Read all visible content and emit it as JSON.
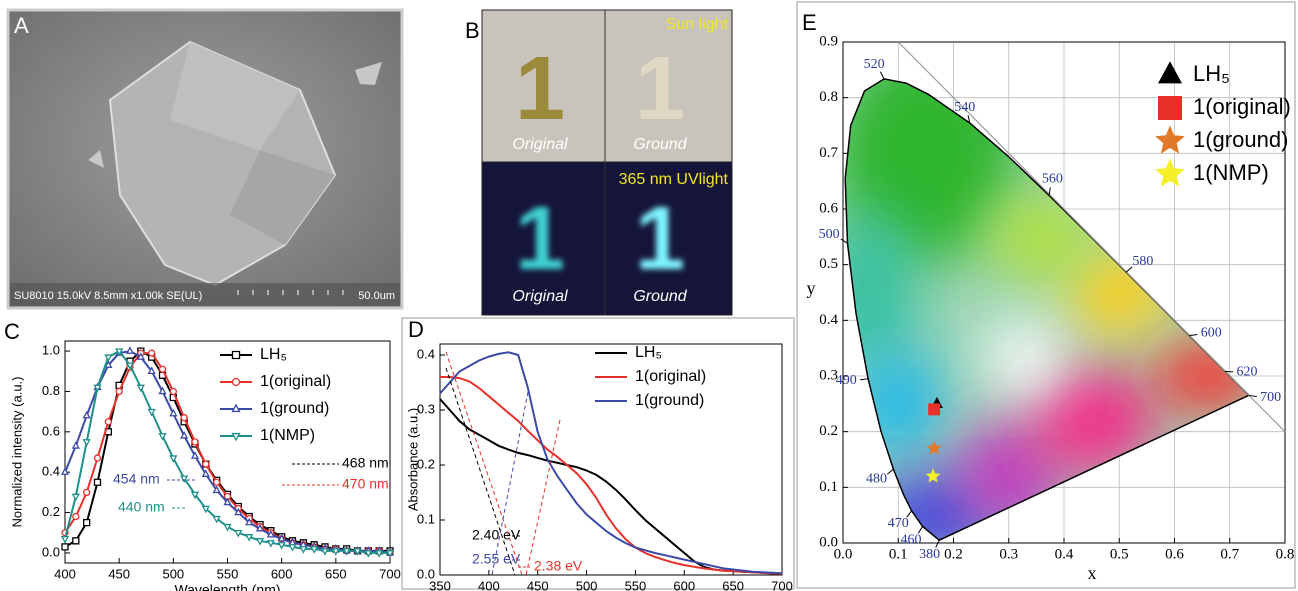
{
  "panel_a": {
    "label": "A",
    "caption": "SU8010 15.0kV 8.5mm x1.00k SE(UL)",
    "scale": "50.0um"
  },
  "panel_b": {
    "label": "B",
    "top": {
      "title": "Sun light",
      "samples": [
        "1",
        "1"
      ],
      "captions": [
        "Original",
        "Ground"
      ]
    },
    "bottom": {
      "title": "365 nm UVlight",
      "samples": [
        "1",
        "1"
      ],
      "captions": [
        "Original",
        "Ground"
      ]
    }
  },
  "chart_data": [
    {
      "type": "line",
      "panel_label": "C",
      "x_label": "Wavelength (nm)",
      "y_label": "Normalized intensity (a.u.)",
      "x": [
        400,
        410,
        420,
        430,
        440,
        450,
        460,
        470,
        480,
        490,
        500,
        510,
        520,
        530,
        540,
        550,
        560,
        570,
        580,
        590,
        600,
        610,
        620,
        630,
        640,
        650,
        660,
        670,
        680,
        690,
        700
      ],
      "series": [
        {
          "name": "LH₅",
          "color": "#000000",
          "marker": "square",
          "values": [
            0.03,
            0.06,
            0.15,
            0.35,
            0.6,
            0.83,
            0.95,
            1.0,
            0.97,
            0.88,
            0.77,
            0.65,
            0.54,
            0.44,
            0.36,
            0.29,
            0.23,
            0.18,
            0.14,
            0.11,
            0.08,
            0.06,
            0.05,
            0.04,
            0.03,
            0.02,
            0.02,
            0.01,
            0.01,
            0.01,
            0.01
          ]
        },
        {
          "name": "1(original)",
          "color": "#e8302a",
          "marker": "circle",
          "values": [
            0.1,
            0.18,
            0.3,
            0.47,
            0.65,
            0.8,
            0.92,
            0.99,
            0.99,
            0.91,
            0.8,
            0.67,
            0.55,
            0.44,
            0.35,
            0.28,
            0.22,
            0.17,
            0.13,
            0.1,
            0.07,
            0.05,
            0.04,
            0.03,
            0.02,
            0.02,
            0.01,
            0.01,
            0.01,
            0.01,
            0
          ]
        },
        {
          "name": "1(ground)",
          "color": "#3b4aa8",
          "marker": "triangle-up",
          "values": [
            0.4,
            0.53,
            0.68,
            0.82,
            0.93,
            0.99,
            1.0,
            0.97,
            0.9,
            0.8,
            0.69,
            0.58,
            0.48,
            0.39,
            0.31,
            0.25,
            0.2,
            0.15,
            0.12,
            0.09,
            0.07,
            0.05,
            0.04,
            0.03,
            0.02,
            0.02,
            0.01,
            0.01,
            0.01,
            0.01,
            0
          ]
        },
        {
          "name": "1(NMP)",
          "color": "#1f8f8a",
          "marker": "triangle-down",
          "values": [
            0.07,
            0.28,
            0.55,
            0.82,
            0.97,
            1.0,
            0.93,
            0.82,
            0.7,
            0.58,
            0.47,
            0.37,
            0.29,
            0.22,
            0.17,
            0.13,
            0.1,
            0.08,
            0.06,
            0.05,
            0.04,
            0.03,
            0.02,
            0.02,
            0.01,
            0.01,
            0.01,
            0.01,
            0,
            0,
            0
          ]
        }
      ],
      "xlim": [
        400,
        700
      ],
      "xticks": [
        400,
        450,
        500,
        550,
        600,
        650,
        700
      ],
      "ylim": [
        -0.05,
        1.05
      ],
      "yticks": [
        {
          "value": 0,
          "label": "0.0"
        },
        0.2,
        0.4,
        0.6,
        0.8,
        {
          "value": 1,
          "label": "1.0"
        }
      ],
      "annotations": [
        {
          "text": "468 nm",
          "color": "#000000"
        },
        {
          "text": "470 nm",
          "color": "#e8302a"
        },
        {
          "text": "454 nm",
          "color": "#3b4aa8"
        },
        {
          "text": "440 nm",
          "color": "#1f8f8a"
        }
      ]
    },
    {
      "type": "line",
      "panel_label": "D",
      "x_label": "Wavelength (nm)",
      "y_label": "Absorbance (a.u.)",
      "x": [
        350,
        360,
        370,
        380,
        390,
        400,
        410,
        420,
        430,
        440,
        450,
        460,
        470,
        480,
        490,
        500,
        510,
        520,
        530,
        540,
        550,
        560,
        570,
        580,
        590,
        600,
        610,
        620,
        630,
        640,
        650,
        660,
        670,
        680,
        690,
        700
      ],
      "series": [
        {
          "name": "LH₅",
          "color": "#000000",
          "values": [
            0.32,
            0.3,
            0.28,
            0.265,
            0.255,
            0.245,
            0.235,
            0.228,
            0.222,
            0.218,
            0.213,
            0.208,
            0.204,
            0.2,
            0.196,
            0.19,
            0.182,
            0.17,
            0.155,
            0.137,
            0.118,
            0.1,
            0.085,
            0.07,
            0.055,
            0.04,
            0.025,
            0.015,
            0.01,
            0.008,
            0.007,
            0.006,
            0.005,
            0.004,
            0.003,
            0.003
          ]
        },
        {
          "name": "1(original)",
          "color": "#e8302a",
          "values": [
            0.36,
            0.36,
            0.358,
            0.352,
            0.34,
            0.325,
            0.31,
            0.295,
            0.28,
            0.262,
            0.245,
            0.228,
            0.215,
            0.2,
            0.185,
            0.165,
            0.14,
            0.11,
            0.085,
            0.065,
            0.05,
            0.04,
            0.033,
            0.027,
            0.022,
            0.018,
            0.015,
            0.012,
            0.01,
            0.008,
            0.007,
            0.006,
            0.005,
            0.004,
            0.003,
            0.002
          ]
        },
        {
          "name": "1(ground)",
          "color": "#3b4aa8",
          "values": [
            0.33,
            0.35,
            0.37,
            0.38,
            0.39,
            0.397,
            0.402,
            0.405,
            0.4,
            0.34,
            0.26,
            0.21,
            0.18,
            0.155,
            0.13,
            0.11,
            0.095,
            0.08,
            0.068,
            0.058,
            0.05,
            0.045,
            0.04,
            0.036,
            0.032,
            0.028,
            0.024,
            0.02,
            0.016,
            0.012,
            0.01,
            0.008,
            0.006,
            0.005,
            0.004,
            0.003
          ]
        }
      ],
      "xlim": [
        350,
        700
      ],
      "xticks": [
        350,
        400,
        450,
        500,
        550,
        600,
        650,
        700
      ],
      "ylim": [
        0,
        0.42
      ],
      "yticks": [
        {
          "value": 0,
          "label": "0.0"
        },
        0.1,
        0.2,
        0.3,
        0.4
      ],
      "annotations": [
        {
          "text": "2.40 eV",
          "color": "#000000"
        },
        {
          "text": "2.55 eV",
          "color": "#3b4aa8"
        },
        {
          "text": "2.38 eV",
          "color": "#e8302a"
        }
      ]
    },
    {
      "type": "scatter",
      "panel_label": "E",
      "x_label": "x",
      "y_label": "y",
      "series": [
        {
          "name": "LH₅",
          "color": "#000000",
          "marker": "triangle",
          "x": [
            0.17
          ],
          "values": [
            0.25
          ]
        },
        {
          "name": "1(original)",
          "color": "#e8302a",
          "marker": "square",
          "x": [
            0.165
          ],
          "values": [
            0.24
          ]
        },
        {
          "name": "1(ground)",
          "color": "#e07a2a",
          "marker": "star",
          "x": [
            0.165
          ],
          "values": [
            0.17
          ]
        },
        {
          "name": "1(NMP)",
          "color": "#f5ef2a",
          "marker": "star",
          "x": [
            0.163
          ],
          "values": [
            0.12
          ]
        }
      ],
      "locus": {
        "wavelength": [
          380,
          460,
          470,
          475,
          480,
          485,
          490,
          495,
          500,
          505,
          510,
          515,
          520,
          525,
          530,
          540,
          550,
          560,
          570,
          580,
          590,
          600,
          620,
          640,
          700
        ],
        "x": [
          0.1741,
          0.144,
          0.1241,
          0.1096,
          0.0913,
          0.0687,
          0.0454,
          0.0235,
          0.0082,
          0.0039,
          0.0139,
          0.0389,
          0.0743,
          0.1142,
          0.1547,
          0.2296,
          0.3016,
          0.3731,
          0.4441,
          0.5125,
          0.5752,
          0.627,
          0.6915,
          0.719,
          0.7347
        ],
        "y": [
          0.005,
          0.0297,
          0.0578,
          0.0868,
          0.1327,
          0.2007,
          0.295,
          0.4127,
          0.5384,
          0.6548,
          0.7502,
          0.812,
          0.8338,
          0.8262,
          0.8059,
          0.7543,
          0.6923,
          0.6245,
          0.5547,
          0.4866,
          0.4242,
          0.3725,
          0.3083,
          0.2809,
          0.2653
        ]
      },
      "labeled_wavelengths": [
        380,
        460,
        470,
        480,
        490,
        500,
        520,
        540,
        560,
        580,
        600,
        620,
        700
      ],
      "xlim": [
        0,
        0.8
      ],
      "xticks": [
        {
          "value": 0,
          "label": "0.0"
        },
        0.1,
        0.2,
        0.3,
        0.4,
        0.5,
        0.6,
        0.7,
        0.8
      ],
      "ylim": [
        0,
        0.9
      ],
      "yticks": [
        {
          "value": 0,
          "label": "0.0"
        },
        0.1,
        0.2,
        0.3,
        0.4,
        0.5,
        0.6,
        0.7,
        0.8,
        0.9
      ],
      "grid": true
    }
  ]
}
